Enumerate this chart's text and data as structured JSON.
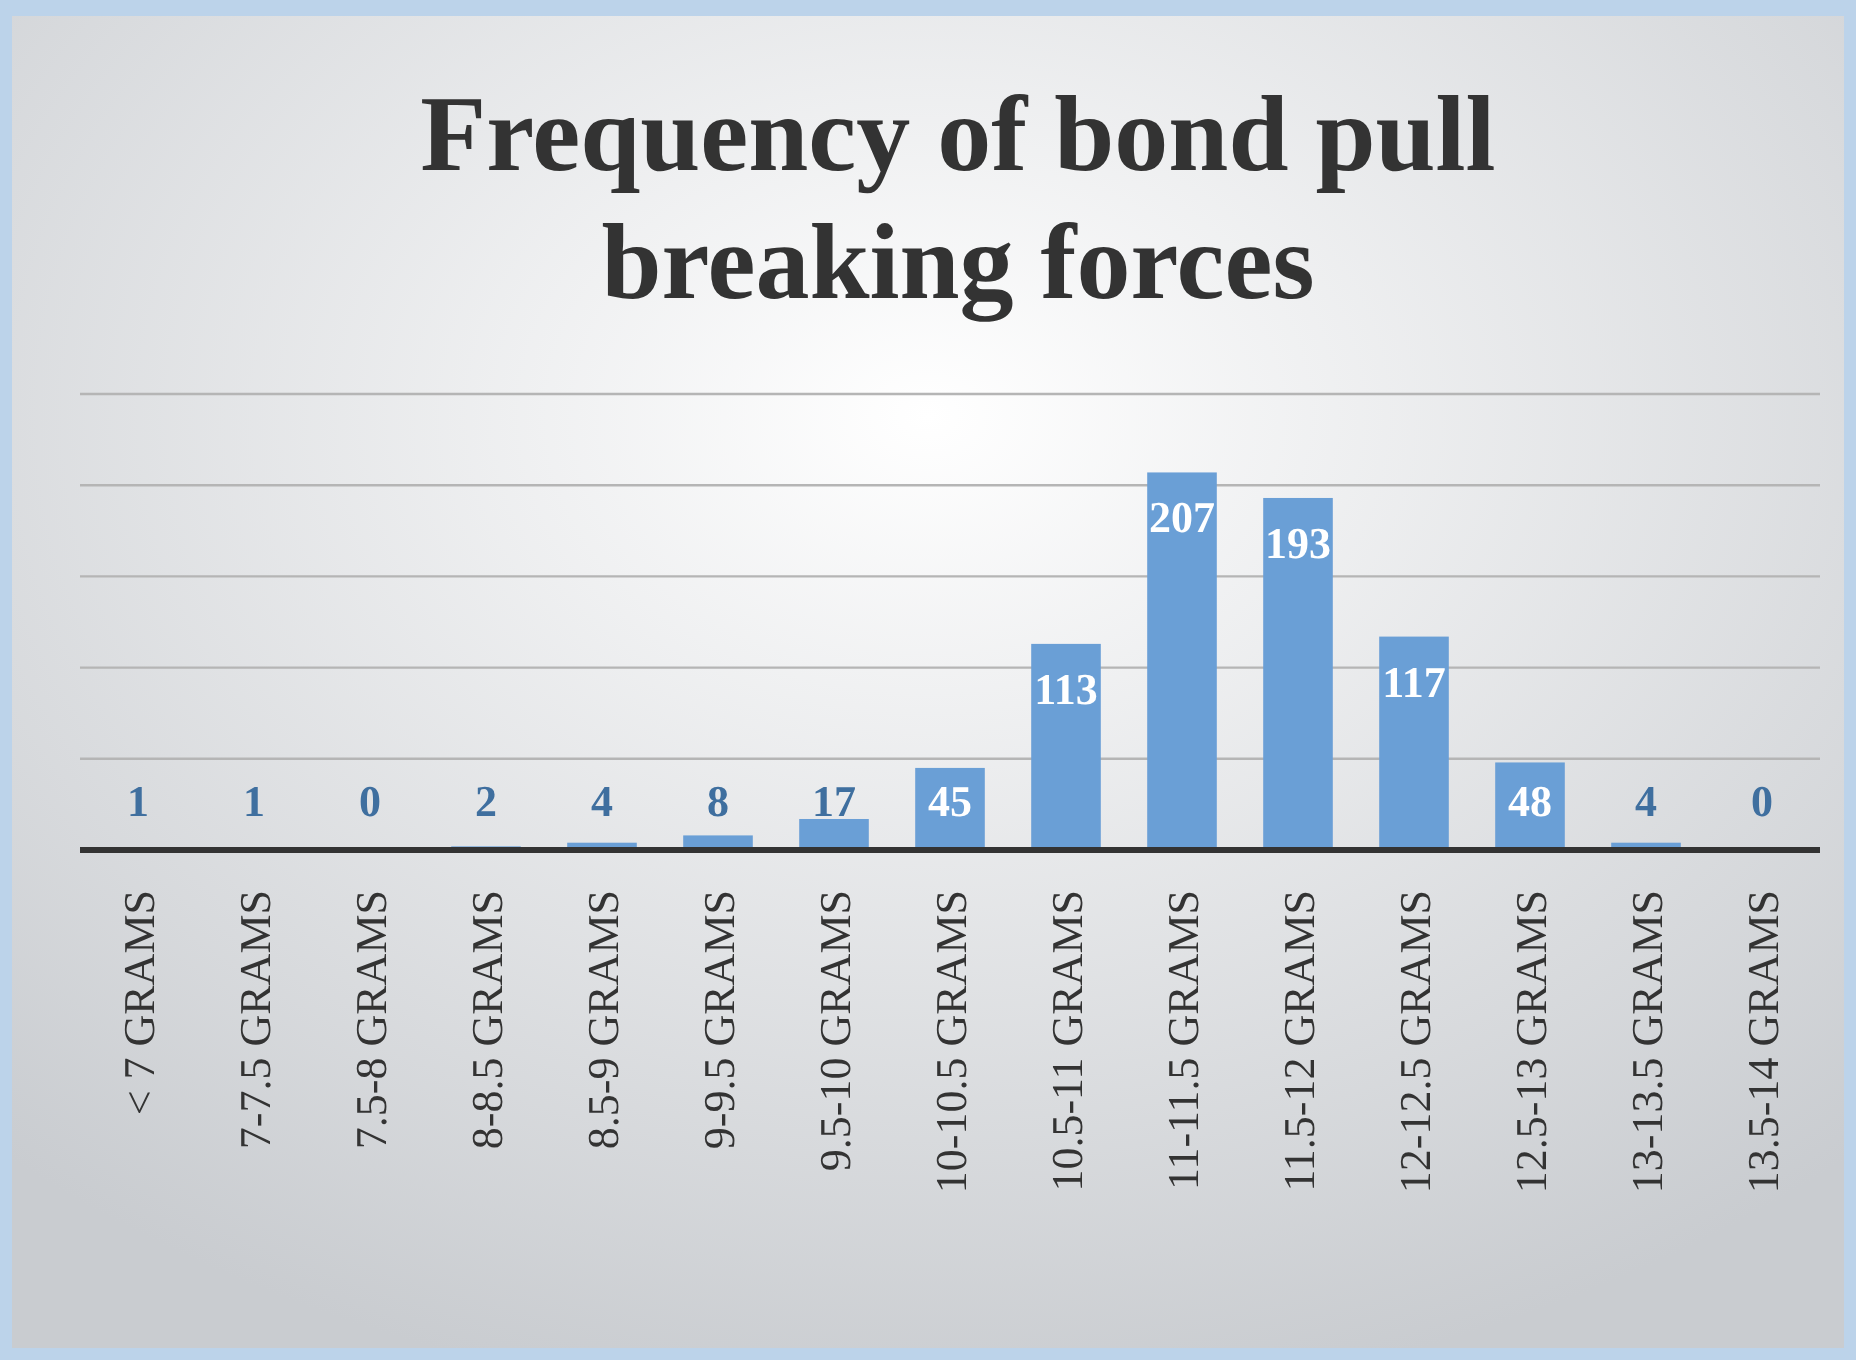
{
  "chart_data": {
    "type": "bar",
    "title": "Frequency of bond pull breaking forces",
    "categories": [
      "< 7 GRAMS",
      "7-7.5 GRAMS",
      "7.5-8 GRAMS",
      "8-8.5 GRAMS",
      "8.5-9 GRAMS",
      "9-9.5 GRAMS",
      "9.5-10 GRAMS",
      "10-10.5 GRAMS",
      "10.5-11 GRAMS",
      "11-11.5 GRAMS",
      "11.5-12 GRAMS",
      "12-12.5 GRAMS",
      "12.5-13 GRAMS",
      "13-13.5 GRAMS",
      "13.5-14 GRAMS"
    ],
    "values": [
      1,
      1,
      0,
      2,
      4,
      8,
      17,
      45,
      113,
      207,
      193,
      117,
      48,
      4,
      0
    ],
    "color": "#6a9fd6",
    "data_labels": true,
    "ylim": [
      0,
      250
    ],
    "yticks": [
      {
        "value": 0,
        "label": null
      },
      {
        "value": 50,
        "label": null
      },
      {
        "value": 100,
        "label": null
      },
      {
        "value": 150,
        "label": null
      },
      {
        "value": 200,
        "label": null
      },
      {
        "value": 250,
        "label": null
      }
    ],
    "grid": "y",
    "tick_labels": "x"
  }
}
